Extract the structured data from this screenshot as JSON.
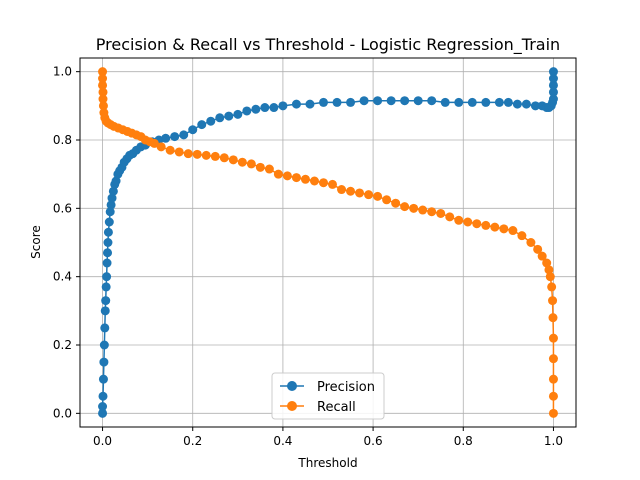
{
  "chart_data": {
    "type": "line",
    "title": "Precision & Recall vs Threshold - Logistic Regression_Train",
    "xlabel": "Threshold",
    "ylabel": "Score",
    "xlim": [
      -0.05,
      1.05
    ],
    "ylim": [
      -0.04,
      1.04
    ],
    "xticks": [
      0.0,
      0.2,
      0.4,
      0.6,
      0.8,
      1.0
    ],
    "xtick_labels": [
      "0.0",
      "0.2",
      "0.4",
      "0.6",
      "0.8",
      "1.0"
    ],
    "yticks": [
      0.0,
      0.2,
      0.4,
      0.6,
      0.8,
      1.0
    ],
    "ytick_labels": [
      "0.0",
      "0.2",
      "0.4",
      "0.6",
      "0.8",
      "1.0"
    ],
    "grid": true,
    "legend_position": "bottom-center",
    "markers": "circle",
    "series": [
      {
        "name": "Precision",
        "color": "#1f77b4",
        "points": [
          [
            0.0,
            0.0
          ],
          [
            0.0,
            0.02
          ],
          [
            0.001,
            0.05
          ],
          [
            0.002,
            0.1
          ],
          [
            0.003,
            0.15
          ],
          [
            0.004,
            0.2
          ],
          [
            0.005,
            0.25
          ],
          [
            0.006,
            0.3
          ],
          [
            0.007,
            0.33
          ],
          [
            0.008,
            0.37
          ],
          [
            0.009,
            0.4
          ],
          [
            0.01,
            0.44
          ],
          [
            0.011,
            0.47
          ],
          [
            0.012,
            0.5
          ],
          [
            0.013,
            0.53
          ],
          [
            0.015,
            0.56
          ],
          [
            0.017,
            0.59
          ],
          [
            0.019,
            0.61
          ],
          [
            0.021,
            0.63
          ],
          [
            0.024,
            0.65
          ],
          [
            0.027,
            0.67
          ],
          [
            0.03,
            0.68
          ],
          [
            0.034,
            0.7
          ],
          [
            0.038,
            0.71
          ],
          [
            0.043,
            0.72
          ],
          [
            0.048,
            0.735
          ],
          [
            0.054,
            0.745
          ],
          [
            0.06,
            0.755
          ],
          [
            0.067,
            0.76
          ],
          [
            0.075,
            0.77
          ],
          [
            0.085,
            0.78
          ],
          [
            0.095,
            0.785
          ],
          [
            0.11,
            0.795
          ],
          [
            0.125,
            0.8
          ],
          [
            0.14,
            0.805
          ],
          [
            0.16,
            0.81
          ],
          [
            0.18,
            0.815
          ],
          [
            0.2,
            0.83
          ],
          [
            0.22,
            0.845
          ],
          [
            0.24,
            0.855
          ],
          [
            0.26,
            0.865
          ],
          [
            0.28,
            0.87
          ],
          [
            0.3,
            0.875
          ],
          [
            0.32,
            0.885
          ],
          [
            0.34,
            0.89
          ],
          [
            0.36,
            0.895
          ],
          [
            0.38,
            0.895
          ],
          [
            0.4,
            0.9
          ],
          [
            0.43,
            0.905
          ],
          [
            0.46,
            0.905
          ],
          [
            0.49,
            0.91
          ],
          [
            0.52,
            0.91
          ],
          [
            0.55,
            0.91
          ],
          [
            0.58,
            0.915
          ],
          [
            0.61,
            0.915
          ],
          [
            0.64,
            0.915
          ],
          [
            0.67,
            0.915
          ],
          [
            0.7,
            0.915
          ],
          [
            0.73,
            0.915
          ],
          [
            0.76,
            0.91
          ],
          [
            0.79,
            0.91
          ],
          [
            0.82,
            0.91
          ],
          [
            0.85,
            0.91
          ],
          [
            0.88,
            0.91
          ],
          [
            0.9,
            0.91
          ],
          [
            0.92,
            0.905
          ],
          [
            0.94,
            0.905
          ],
          [
            0.96,
            0.9
          ],
          [
            0.975,
            0.9
          ],
          [
            0.985,
            0.895
          ],
          [
            0.99,
            0.895
          ],
          [
            0.995,
            0.9
          ],
          [
            0.998,
            0.91
          ],
          [
            1.0,
            0.92
          ],
          [
            1.0,
            0.94
          ],
          [
            1.0,
            0.96
          ],
          [
            1.0,
            0.98
          ],
          [
            1.0,
            1.0
          ]
        ]
      },
      {
        "name": "Recall",
        "color": "#ff7f0e",
        "points": [
          [
            0.0,
            1.0
          ],
          [
            0.0,
            0.98
          ],
          [
            0.0,
            0.96
          ],
          [
            0.001,
            0.94
          ],
          [
            0.001,
            0.92
          ],
          [
            0.002,
            0.9
          ],
          [
            0.003,
            0.88
          ],
          [
            0.005,
            0.865
          ],
          [
            0.008,
            0.855
          ],
          [
            0.012,
            0.85
          ],
          [
            0.018,
            0.845
          ],
          [
            0.025,
            0.84
          ],
          [
            0.035,
            0.835
          ],
          [
            0.045,
            0.83
          ],
          [
            0.055,
            0.825
          ],
          [
            0.065,
            0.82
          ],
          [
            0.075,
            0.815
          ],
          [
            0.085,
            0.81
          ],
          [
            0.095,
            0.8
          ],
          [
            0.105,
            0.795
          ],
          [
            0.115,
            0.79
          ],
          [
            0.13,
            0.78
          ],
          [
            0.15,
            0.77
          ],
          [
            0.17,
            0.765
          ],
          [
            0.19,
            0.76
          ],
          [
            0.21,
            0.758
          ],
          [
            0.23,
            0.755
          ],
          [
            0.25,
            0.752
          ],
          [
            0.27,
            0.748
          ],
          [
            0.29,
            0.742
          ],
          [
            0.31,
            0.735
          ],
          [
            0.33,
            0.73
          ],
          [
            0.35,
            0.72
          ],
          [
            0.37,
            0.715
          ],
          [
            0.39,
            0.7
          ],
          [
            0.41,
            0.695
          ],
          [
            0.43,
            0.69
          ],
          [
            0.45,
            0.685
          ],
          [
            0.47,
            0.68
          ],
          [
            0.49,
            0.675
          ],
          [
            0.51,
            0.67
          ],
          [
            0.53,
            0.655
          ],
          [
            0.55,
            0.65
          ],
          [
            0.57,
            0.645
          ],
          [
            0.59,
            0.64
          ],
          [
            0.61,
            0.635
          ],
          [
            0.63,
            0.625
          ],
          [
            0.65,
            0.615
          ],
          [
            0.67,
            0.605
          ],
          [
            0.69,
            0.6
          ],
          [
            0.71,
            0.595
          ],
          [
            0.73,
            0.59
          ],
          [
            0.75,
            0.585
          ],
          [
            0.77,
            0.575
          ],
          [
            0.79,
            0.565
          ],
          [
            0.81,
            0.56
          ],
          [
            0.83,
            0.555
          ],
          [
            0.85,
            0.55
          ],
          [
            0.87,
            0.545
          ],
          [
            0.89,
            0.54
          ],
          [
            0.91,
            0.535
          ],
          [
            0.93,
            0.52
          ],
          [
            0.95,
            0.5
          ],
          [
            0.965,
            0.48
          ],
          [
            0.975,
            0.46
          ],
          [
            0.985,
            0.44
          ],
          [
            0.99,
            0.42
          ],
          [
            0.993,
            0.4
          ],
          [
            0.996,
            0.37
          ],
          [
            0.998,
            0.33
          ],
          [
            0.999,
            0.28
          ],
          [
            1.0,
            0.22
          ],
          [
            1.0,
            0.16
          ],
          [
            1.0,
            0.1
          ],
          [
            1.0,
            0.05
          ],
          [
            1.0,
            0.0
          ]
        ]
      }
    ]
  }
}
